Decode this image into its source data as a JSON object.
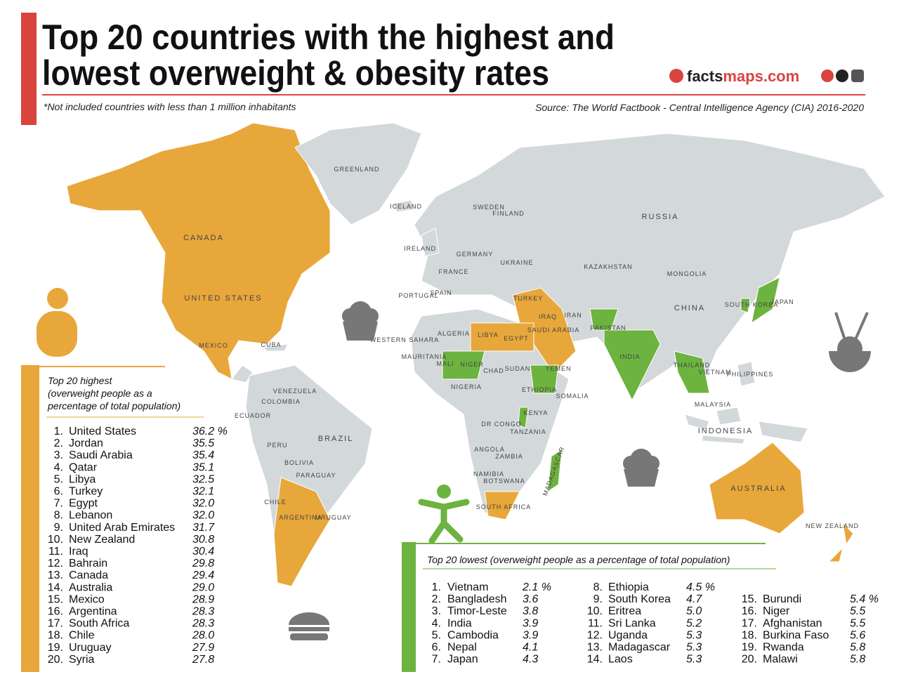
{
  "header": {
    "title_lines": [
      "Top 20 countries with the highest and",
      "lowest overweight & obesity rates"
    ],
    "note": "*Not included countries with less than 1 million inhabitants",
    "source": "Source: The World Factbook - Central Intelligence Agency (CIA) 2016-2020",
    "brand": [
      "facts",
      "maps.com"
    ]
  },
  "map": {
    "labels": [
      "GREENLAND",
      "CANADA",
      "UNITED STATES",
      "MEXICO",
      "CUBA",
      "VENEZUELA",
      "COLOMBIA",
      "ECUADOR",
      "PERU",
      "BRAZIL",
      "BOLIVIA",
      "PARAGUAY",
      "CHILE",
      "ARGENTINA",
      "URUGUAY",
      "ICELAND",
      "FINLAND",
      "SWEDEN",
      "IRELAND",
      "GERMANY",
      "FRANCE",
      "UKRAINE",
      "SPAIN",
      "PORTUGAL",
      "RUSSIA",
      "KAZAKHSTAN",
      "MONGOLIA",
      "CHINA",
      "JAPAN",
      "TURKEY",
      "IRAQ",
      "IRAN",
      "SAUDI ARABIA",
      "YEMEN",
      "PAKISTAN",
      "INDIA",
      "ALGERIA",
      "LIBYA",
      "EGYPT",
      "MALI",
      "NIGER",
      "CHAD",
      "SUDAN",
      "NIGERIA",
      "ETHIOPIA",
      "SOMALIA",
      "DR CONGO",
      "KENYA",
      "TANZANIA",
      "ANGOLA",
      "ZAMBIA",
      "NAMIBIA",
      "BOTSWANA",
      "SOUTH AFRICA",
      "MADAGASCAR",
      "PHILIPPINES",
      "MALAYSIA",
      "INDONESIA",
      "AUSTRALIA",
      "NEW ZEALAND",
      "WESTERN SAHARA",
      "MAURITANIA",
      "VIETNAM",
      "THAILAND",
      "SOUTH KOREA"
    ]
  },
  "highest": {
    "heading": [
      "Top 20 highest",
      "(overweight people as a",
      "percentage of total population)"
    ],
    "rows": [
      [
        "1.",
        "United States",
        "36.2 %"
      ],
      [
        "2.",
        "Jordan",
        "35.5"
      ],
      [
        "3.",
        "Saudi Arabia",
        "35.4"
      ],
      [
        "4.",
        "Qatar",
        "35.1"
      ],
      [
        "5.",
        "Libya",
        "32.5"
      ],
      [
        "6.",
        "Turkey",
        "32.1"
      ],
      [
        "7.",
        "Egypt",
        "32.0"
      ],
      [
        "8.",
        "Lebanon",
        "32.0"
      ],
      [
        "9.",
        "United Arab Emirates",
        "31.7"
      ],
      [
        "10.",
        "New Zealand",
        "30.8"
      ],
      [
        "11.",
        "Iraq",
        "30.4"
      ],
      [
        "12.",
        "Bahrain",
        "29.8"
      ],
      [
        "13.",
        "Canada",
        "29.4"
      ],
      [
        "14.",
        "Australia",
        "29.0"
      ],
      [
        "15.",
        "Mexico",
        "28.9"
      ],
      [
        "16.",
        "Argentina",
        "28.3"
      ],
      [
        "17.",
        "South Africa",
        "28.3"
      ],
      [
        "18.",
        "Chile",
        "28.0"
      ],
      [
        "19.",
        "Uruguay",
        "27.9"
      ],
      [
        "20.",
        "Syria",
        "27.8"
      ]
    ]
  },
  "lowest": {
    "heading": "Top 20 lowest (overweight people as a percentage of total population)",
    "rows": [
      [
        "1.",
        "Vietnam",
        "2.1 %"
      ],
      [
        "2.",
        "Bangladesh",
        "3.6"
      ],
      [
        "3.",
        "Timor-Leste",
        "3.8"
      ],
      [
        "4.",
        "India",
        "3.9"
      ],
      [
        "5.",
        "Cambodia",
        "3.9"
      ],
      [
        "6.",
        "Nepal",
        "4.1"
      ],
      [
        "7.",
        "Japan",
        "4.3"
      ],
      [
        "8.",
        "Ethiopia",
        "4.5 %"
      ],
      [
        "9.",
        "South Korea",
        "4.7"
      ],
      [
        "10.",
        "Eritrea",
        "5.0"
      ],
      [
        "11.",
        "Sri Lanka",
        "5.2"
      ],
      [
        "12.",
        "Uganda",
        "5.3"
      ],
      [
        "13.",
        "Madagascar",
        "5.3"
      ],
      [
        "14.",
        "Laos",
        "5.3"
      ],
      [
        "15.",
        "Burundi",
        "5.4 %"
      ],
      [
        "16.",
        "Niger",
        "5.5"
      ],
      [
        "17.",
        "Afghanistan",
        "5.5"
      ],
      [
        "18.",
        "Burkina Faso",
        "5.6"
      ],
      [
        "19.",
        "Rwanda",
        "5.8"
      ],
      [
        "20.",
        "Malawi",
        "5.8"
      ]
    ]
  }
}
